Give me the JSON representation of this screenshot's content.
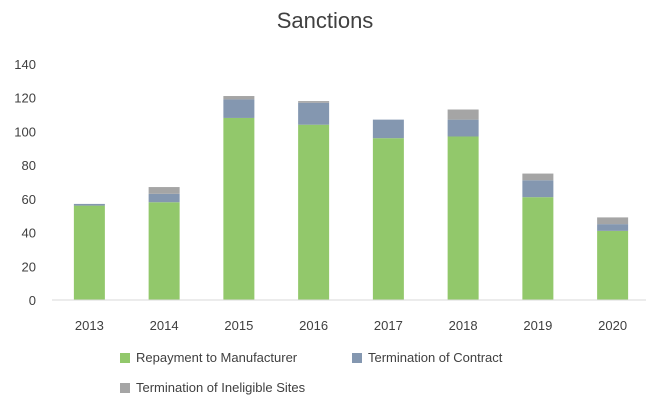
{
  "chart_data": {
    "type": "bar",
    "stacked": true,
    "title": "Sanctions",
    "xlabel": "",
    "ylabel": "",
    "categories": [
      "2013",
      "2014",
      "2015",
      "2016",
      "2017",
      "2018",
      "2019",
      "2020"
    ],
    "ylim": [
      0,
      140
    ],
    "yticks": [
      0,
      20,
      40,
      60,
      80,
      100,
      120,
      140
    ],
    "grid": false,
    "legend_position": "bottom",
    "series": [
      {
        "name": "Repayment to Manufacturer",
        "color": "#92C86B",
        "values": [
          56,
          58,
          108,
          104,
          96,
          97,
          61,
          41
        ]
      },
      {
        "name": "Termination of Contract",
        "color": "#8497B0",
        "values": [
          1,
          5,
          11,
          13,
          11,
          10,
          10,
          4
        ]
      },
      {
        "name": "Termination of Ineligible Sites",
        "color": "#A5A5A5",
        "values": [
          0,
          4,
          2,
          1,
          0,
          6,
          4,
          4
        ]
      }
    ]
  }
}
